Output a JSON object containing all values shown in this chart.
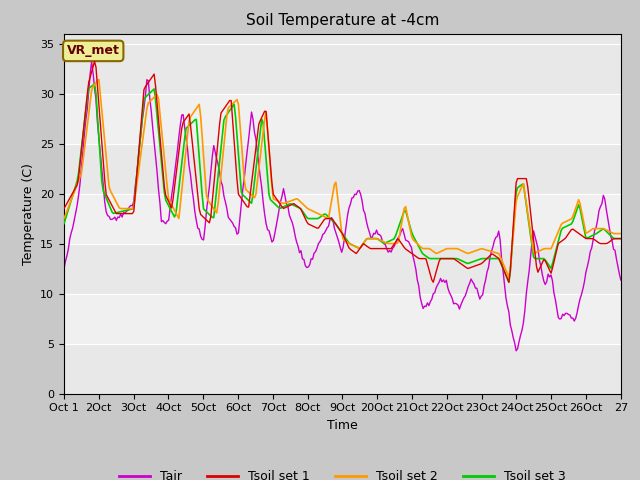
{
  "title": "Soil Temperature at -4cm",
  "xlabel": "Time",
  "ylabel": "Temperature (C)",
  "ylim": [
    0,
    36
  ],
  "yticks": [
    0,
    5,
    10,
    15,
    20,
    25,
    30,
    35
  ],
  "color_tair": "#cc00cc",
  "color_tsoil1": "#dd0000",
  "color_tsoil2": "#ff9900",
  "color_tsoil3": "#00cc00",
  "annotation_text": "VR_met",
  "annotation_color": "#660000",
  "annotation_bg": "#eeee99",
  "plot_bg": "#e8e8e8",
  "band_color": "#d0d0d0",
  "legend_labels": [
    "Tair",
    "Tsoil set 1",
    "Tsoil set 2",
    "Tsoil set 3"
  ],
  "xtick_labels": [
    "Oct 1",
    "2Oct",
    "3Oct",
    "4Oct",
    "5Oct",
    "6Oct",
    "7Oct",
    "8Oct",
    "9Oct",
    "20Oct",
    "21Oct",
    "22Oct",
    "23Oct",
    "24Oct",
    "25Oct",
    "26Oct",
    "27"
  ],
  "n_days": 16,
  "pts_per_day": 24
}
